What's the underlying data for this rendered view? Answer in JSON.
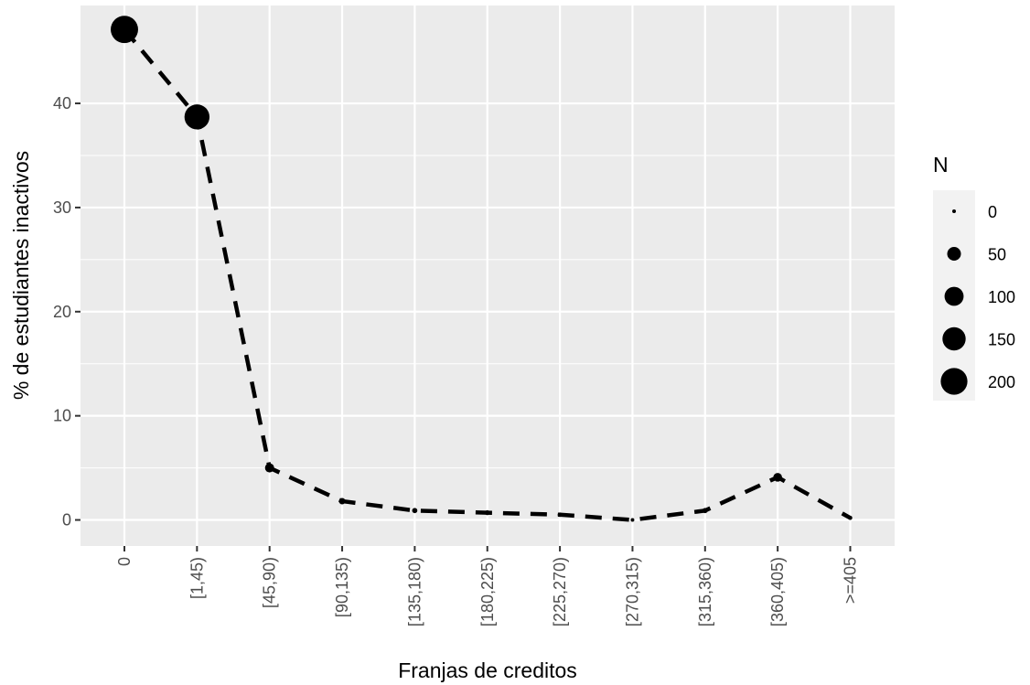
{
  "chart_data": {
    "type": "line",
    "title": "",
    "xlabel": "Franjas de creditos",
    "ylabel": "% de estudiantes inactivos",
    "categories": [
      "0",
      "[1,45)",
      "[45,90)",
      "[90,135)",
      "[135,180)",
      "[180,225)",
      "[225,270)",
      "[270,315)",
      "[315,360)",
      "[360,405)",
      ">=405"
    ],
    "values": [
      47.1,
      38.7,
      5.0,
      1.8,
      0.9,
      0.7,
      0.5,
      0.0,
      0.9,
      4.1,
      0.2
    ],
    "sizes": [
      210,
      175,
      20,
      8,
      4,
      3,
      2,
      0,
      4,
      18,
      1
    ],
    "ylim": [
      -2.5,
      49.4
    ],
    "yticks": [
      0,
      10,
      20,
      30,
      40
    ],
    "line_style": "dashed",
    "point_color": "#000000",
    "panel_background": "#ebebeb",
    "gridline_color": "#ffffff",
    "grid": true,
    "legend": {
      "title": "N",
      "position": "right",
      "labels": [
        "0",
        "50",
        "100",
        "150",
        "200"
      ],
      "values": [
        0,
        50,
        100,
        150,
        200
      ]
    }
  }
}
